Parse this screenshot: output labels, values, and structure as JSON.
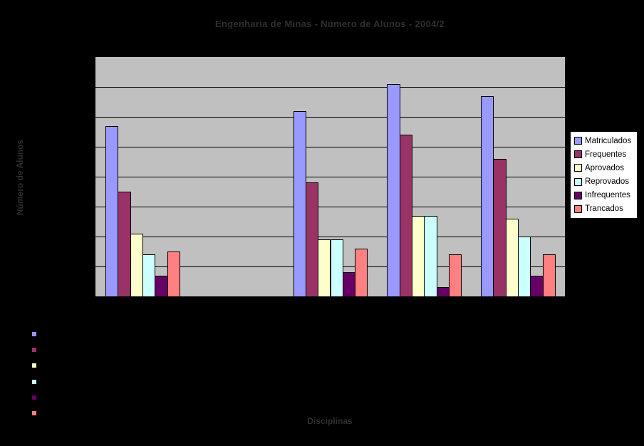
{
  "chart_data": {
    "type": "bar",
    "title": "Engenharia de Minas - Número de Alunos - 2004/2",
    "xlabel": "Disciplinas",
    "ylabel": "Número de Alunos",
    "ylim": [
      0,
      80
    ],
    "ytick_step": 10,
    "grid": "horizontal",
    "legend_position": "right",
    "plot_bg": "#c0c0c0",
    "chart_bg": "#000000",
    "categories": [
      "",
      "",
      "",
      "",
      ""
    ],
    "series": [
      {
        "name": "Matriculados",
        "color": "#9999ff",
        "values": [
          57,
          0,
          62,
          71,
          67
        ]
      },
      {
        "name": "Frequentes",
        "color": "#993366",
        "values": [
          35,
          0,
          38,
          54,
          46
        ]
      },
      {
        "name": "Aprovados",
        "color": "#ffffcc",
        "values": [
          21,
          0,
          19,
          27,
          26
        ]
      },
      {
        "name": "Reprovados",
        "color": "#ccffff",
        "values": [
          14,
          0,
          19,
          27,
          20
        ]
      },
      {
        "name": "Infrequentes",
        "color": "#660066",
        "values": [
          7,
          0,
          8,
          3,
          7
        ]
      },
      {
        "name": "Trancados",
        "color": "#ff8080",
        "values": [
          15,
          0,
          16,
          14,
          14
        ]
      }
    ]
  },
  "legend": {
    "items": [
      "Matriculados",
      "Frequentes",
      "Aprovados",
      "Reprovados",
      "Infrequentes",
      "Trancados"
    ]
  }
}
